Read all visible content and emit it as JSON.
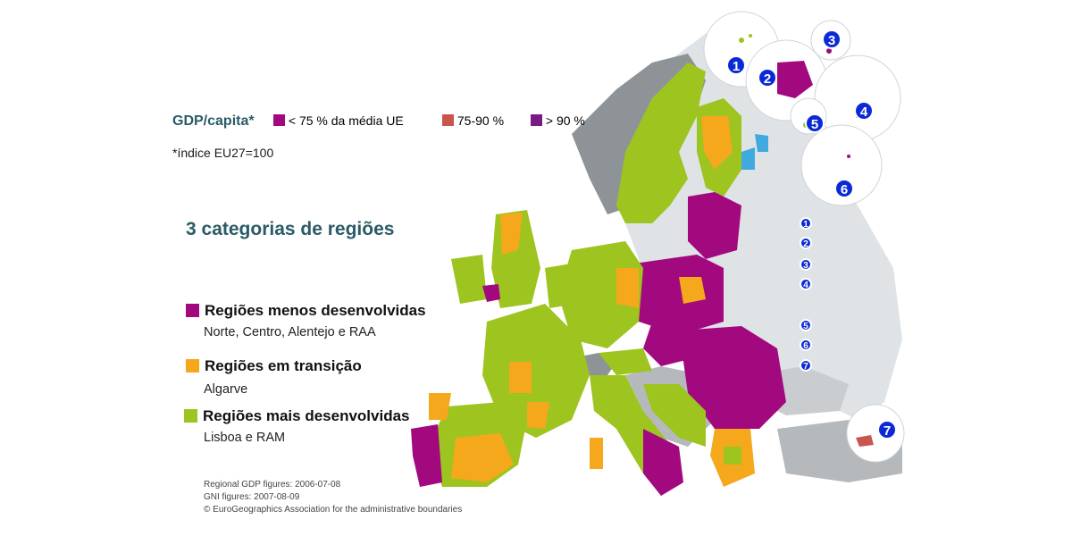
{
  "colors": {
    "less_developed": "#a3097f",
    "transition": "#f5a81c",
    "more_developed": "#9ec41f",
    "range_75_90": "#c8564f",
    "above_90": "#7a1a86",
    "text_teal": "#2b5b66",
    "non_eu_land": "#8e9397",
    "sea_blue": "#0b2ad6"
  },
  "legend": {
    "title": "GDP/capita",
    "star": "*",
    "items": [
      {
        "label": "< 75 % da média UE",
        "color_key": "less_developed"
      },
      {
        "label": "75-90 %",
        "color_key": "range_75_90"
      },
      {
        "label": "> 90 %",
        "color_key": "above_90"
      }
    ],
    "index_note": "*índice EU27=100"
  },
  "categories": {
    "title": "3 categorias de regiões",
    "items": [
      {
        "label": "Regiões menos desenvolvidas",
        "sub": "Norte, Centro, Alentejo e RAA",
        "color_key": "less_developed"
      },
      {
        "label": "Regiões em transição",
        "sub": "Algarve",
        "color_key": "transition"
      },
      {
        "label": "Regiões mais desenvolvidas",
        "sub": "Lisboa e RAM",
        "color_key": "more_developed"
      }
    ]
  },
  "inset_markers": [
    "1",
    "2",
    "3",
    "4",
    "5",
    "6",
    "7"
  ],
  "credits": [
    "Regional GDP figures: 2006-07-08",
    "GNI figures: 2007-08-09",
    "© EuroGeographics Association for the administrative boundaries"
  ],
  "icons": {
    "inset_marker": "numbered-circle-icon"
  }
}
